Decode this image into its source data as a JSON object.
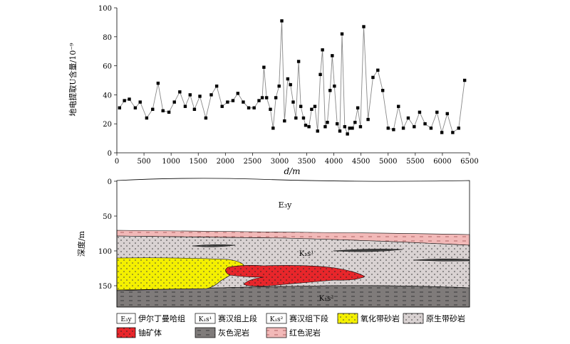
{
  "chart_data": {
    "type": "line",
    "ylabel": "地电提取U含量/10⁻⁹",
    "xlabel": "d/m",
    "xlim": [
      0,
      6500
    ],
    "ylim": [
      0,
      100
    ],
    "xticks": [
      0,
      500,
      1000,
      1500,
      2000,
      2500,
      3000,
      3500,
      4000,
      4500,
      5000,
      5500,
      6000,
      6500
    ],
    "yticks": [
      0,
      20,
      40,
      60,
      80,
      100
    ],
    "series": [
      {
        "marker": "square",
        "color": "#000000",
        "points": [
          [
            50,
            31
          ],
          [
            140,
            36
          ],
          [
            230,
            37
          ],
          [
            340,
            31
          ],
          [
            430,
            35
          ],
          [
            550,
            24
          ],
          [
            660,
            30
          ],
          [
            760,
            48
          ],
          [
            850,
            29
          ],
          [
            960,
            28
          ],
          [
            1060,
            35
          ],
          [
            1160,
            42
          ],
          [
            1260,
            32
          ],
          [
            1350,
            40
          ],
          [
            1430,
            30
          ],
          [
            1530,
            39
          ],
          [
            1640,
            24
          ],
          [
            1740,
            40
          ],
          [
            1840,
            46
          ],
          [
            1940,
            32
          ],
          [
            2040,
            35
          ],
          [
            2140,
            36
          ],
          [
            2230,
            41
          ],
          [
            2330,
            35
          ],
          [
            2430,
            31
          ],
          [
            2530,
            31
          ],
          [
            2620,
            36
          ],
          [
            2680,
            38
          ],
          [
            2710,
            59
          ],
          [
            2760,
            38
          ],
          [
            2830,
            30
          ],
          [
            2880,
            17
          ],
          [
            2930,
            38
          ],
          [
            2990,
            46
          ],
          [
            3040,
            91
          ],
          [
            3090,
            22
          ],
          [
            3150,
            51
          ],
          [
            3200,
            47
          ],
          [
            3250,
            35
          ],
          [
            3300,
            24
          ],
          [
            3350,
            63
          ],
          [
            3390,
            32
          ],
          [
            3440,
            24
          ],
          [
            3480,
            19
          ],
          [
            3540,
            18
          ],
          [
            3590,
            30
          ],
          [
            3650,
            32
          ],
          [
            3700,
            15
          ],
          [
            3750,
            54
          ],
          [
            3790,
            71
          ],
          [
            3840,
            18
          ],
          [
            3880,
            21
          ],
          [
            3930,
            43
          ],
          [
            3970,
            67
          ],
          [
            4010,
            46
          ],
          [
            4060,
            20
          ],
          [
            4110,
            15
          ],
          [
            4150,
            82
          ],
          [
            4200,
            18
          ],
          [
            4250,
            13
          ],
          [
            4290,
            17
          ],
          [
            4340,
            17
          ],
          [
            4390,
            21
          ],
          [
            4440,
            31
          ],
          [
            4490,
            18
          ],
          [
            4550,
            87
          ],
          [
            4630,
            23
          ],
          [
            4720,
            52
          ],
          [
            4810,
            57
          ],
          [
            4900,
            43
          ],
          [
            5000,
            17
          ],
          [
            5100,
            16
          ],
          [
            5190,
            32
          ],
          [
            5280,
            17
          ],
          [
            5370,
            24
          ],
          [
            5480,
            18
          ],
          [
            5580,
            28
          ],
          [
            5680,
            20
          ],
          [
            5790,
            17
          ],
          [
            5900,
            28
          ],
          [
            5990,
            14
          ],
          [
            6090,
            27
          ],
          [
            6190,
            14
          ],
          [
            6300,
            17
          ],
          [
            6410,
            50
          ]
        ]
      }
    ]
  },
  "section": {
    "ylabel": "深度/m",
    "depth_ticks": [
      0,
      50,
      100,
      150
    ],
    "unit_labels": {
      "ey": "E₃y",
      "k1s1": "K₁s¹",
      "k1s2": "K₁s²"
    }
  },
  "legend": {
    "items": [
      {
        "key": "ey",
        "code": "E₃y",
        "label": "伊尔丁曼哈组"
      },
      {
        "key": "k1s1",
        "code": "K₁s¹",
        "label": "赛汉组上段"
      },
      {
        "key": "k1s2",
        "code": "K₁s²",
        "label": "赛汉组下段"
      },
      {
        "key": "oxidized",
        "code": "",
        "label": "氧化带砂岩"
      },
      {
        "key": "primary",
        "code": "",
        "label": "原生带砂岩"
      },
      {
        "key": "ore",
        "code": "",
        "label": "铀矿体"
      },
      {
        "key": "graymud",
        "code": "",
        "label": "灰色泥岩"
      },
      {
        "key": "redmud",
        "code": "",
        "label": "红色泥岩"
      }
    ]
  },
  "colors": {
    "oxidized": "#f4f000",
    "ore": "#e8262b",
    "primary": "#d9d2d2",
    "graymud": "#7f7b7a",
    "redmud": "#f2b9b8",
    "line": "#888888"
  }
}
